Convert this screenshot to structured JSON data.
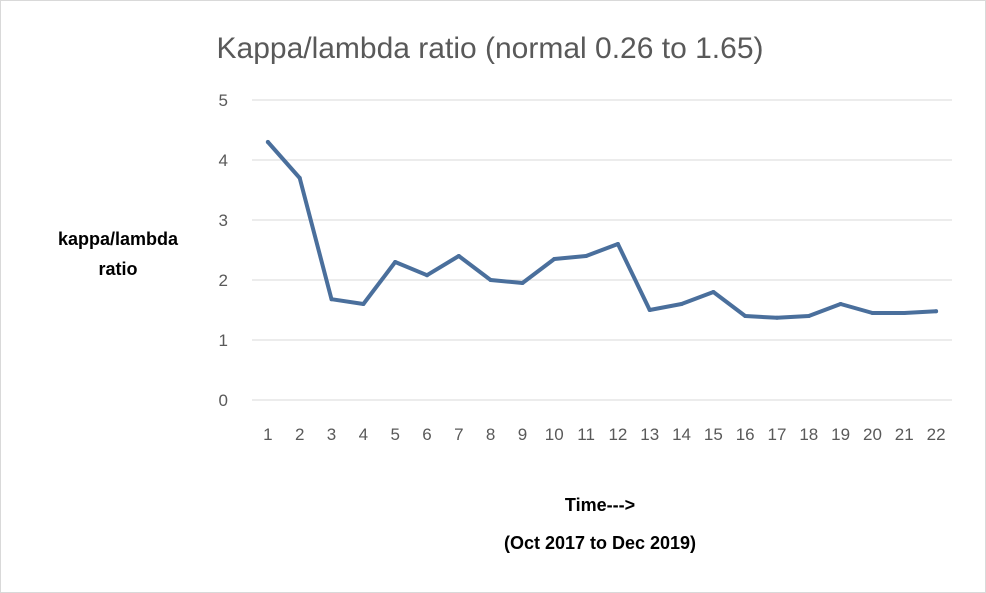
{
  "chart_data": {
    "type": "line",
    "title": "Kappa/lambda ratio  (normal 0.26 to 1.65)",
    "ylabel_lines": [
      "kappa/lambda",
      "ratio"
    ],
    "xlabel_lines": [
      "Time--->",
      "(Oct 2017 to Dec 2019)"
    ],
    "categories": [
      "1",
      "2",
      "3",
      "4",
      "5",
      "6",
      "7",
      "8",
      "9",
      "10",
      "11",
      "12",
      "13",
      "14",
      "15",
      "16",
      "17",
      "18",
      "19",
      "20",
      "21",
      "22"
    ],
    "ylim": [
      0,
      5
    ],
    "yticks": [
      "0",
      "1",
      "2",
      "3",
      "4",
      "5"
    ],
    "grid": true,
    "series": [
      {
        "name": "Kappa/lambda ratio",
        "color": "#4a6f9c",
        "values": [
          4.3,
          3.7,
          1.68,
          1.6,
          2.3,
          2.08,
          2.4,
          2.0,
          1.95,
          2.35,
          2.4,
          2.6,
          1.5,
          1.6,
          1.8,
          1.4,
          1.37,
          1.4,
          1.6,
          1.45,
          1.45,
          1.48
        ]
      }
    ]
  }
}
